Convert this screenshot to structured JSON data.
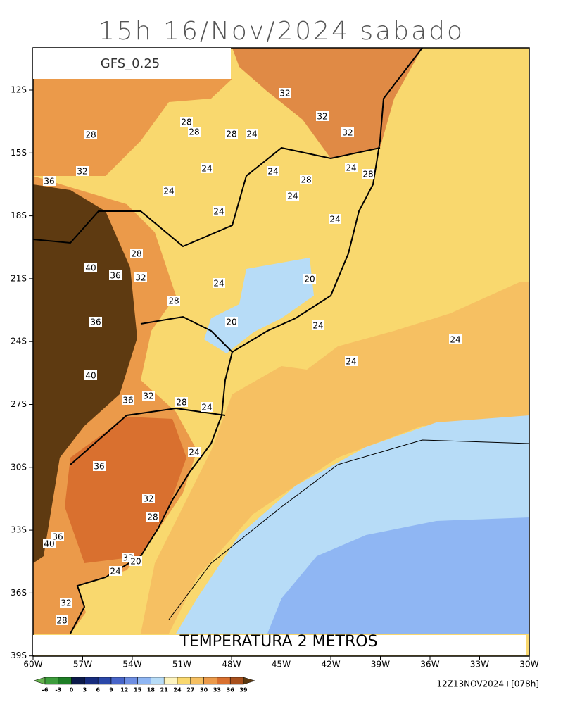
{
  "title": "15h 16/Nov/2024 sabado",
  "model": "GFS_0.25",
  "field_label": "TEMPERATURA 2 METROS",
  "run": "12Z13NOV2024+[078h]",
  "lat_labels": [
    "12S",
    "15S",
    "18S",
    "21S",
    "24S",
    "27S",
    "30S",
    "33S",
    "36S",
    "39S"
  ],
  "lon_labels": [
    "60W",
    "57W",
    "54W",
    "51W",
    "48W",
    "45W",
    "42W",
    "39W",
    "36W",
    "33W",
    "30W"
  ],
  "colorbar": {
    "labels": [
      -6,
      -3,
      0,
      3,
      6,
      9,
      12,
      15,
      18,
      21,
      24,
      27,
      30,
      33,
      36,
      39
    ],
    "colors": [
      "#66b34f",
      "#3d9d3c",
      "#1d7d25",
      "#0c1a4a",
      "#172c7e",
      "#2a47a8",
      "#4865c9",
      "#6e8ee2",
      "#8fb6f3",
      "#b7dcf7",
      "#fdf4c0",
      "#f9d86e",
      "#f6c062",
      "#eb9a4a",
      "#d9702f",
      "#a8501c",
      "#5e3a11"
    ]
  },
  "contour_labels": [
    32,
    32,
    32,
    28,
    28,
    28,
    28,
    24,
    24,
    24,
    28,
    24,
    28,
    24,
    24,
    36,
    32,
    24,
    24,
    28,
    40,
    36,
    32,
    24,
    20,
    28,
    36,
    20,
    24,
    24,
    24,
    40,
    36,
    32,
    28,
    24,
    24,
    36,
    32,
    28,
    40,
    36,
    32,
    20,
    24,
    32,
    28
  ]
}
